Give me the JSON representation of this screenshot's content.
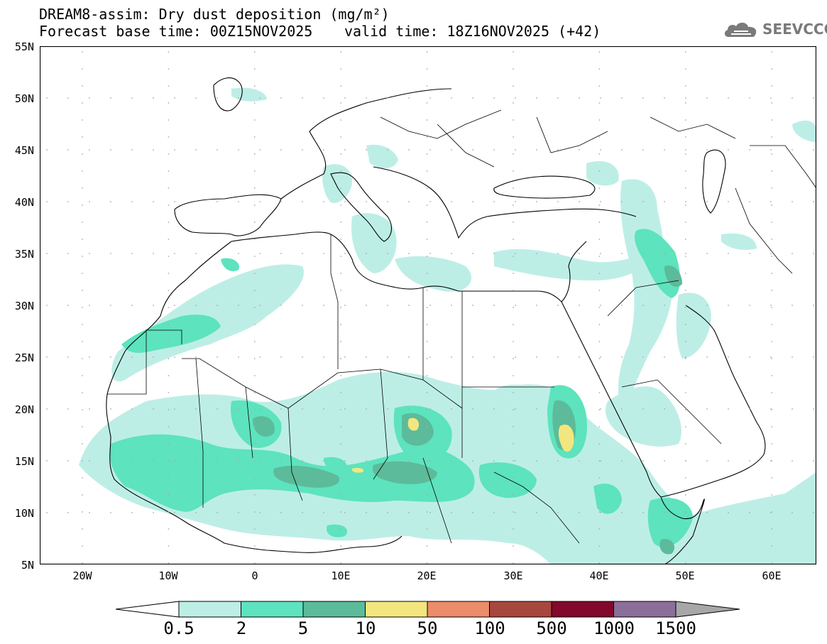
{
  "header": {
    "title_line1": "DREAM8-assim: Dry dust deposition (mg/m²)",
    "title_line2": "Forecast base time: 00Z15NOV2025",
    "valid_time": "valid time: 18Z16NOV2025 (+42)",
    "logo_text": "SEEVCCC",
    "logo_icon": "cloud-icon"
  },
  "axes": {
    "lat_labels": [
      "55N",
      "50N",
      "45N",
      "40N",
      "35N",
      "30N",
      "25N",
      "20N",
      "15N",
      "10N",
      "5N"
    ],
    "lon_labels": [
      "20W",
      "10W",
      "0",
      "10E",
      "20E",
      "30E",
      "40E",
      "50E",
      "60E"
    ]
  },
  "colorbar": {
    "labels": [
      "0.5",
      "2",
      "5",
      "10",
      "50",
      "100",
      "500",
      "1000",
      "1500"
    ],
    "colors": [
      "#bdeee6",
      "#5de3be",
      "#5cbb9a",
      "#f3e67e",
      "#eb8c6a",
      "#a8473c",
      "#82082c",
      "#8c6e9b",
      "#a7a7a7"
    ],
    "lower_extend_color": "#ffffff"
  }
}
